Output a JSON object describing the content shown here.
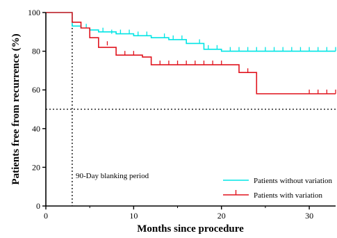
{
  "chart_data": {
    "type": "line",
    "xlabel": "Months since procedure",
    "ylabel": "Patients free from recurrence (%)",
    "xlim": [
      0,
      33
    ],
    "ylim": [
      0,
      100
    ],
    "x_ticks": [
      "0",
      "10",
      "20",
      "30"
    ],
    "y_ticks": [
      "0",
      "20",
      "40",
      "60",
      "80",
      "100"
    ],
    "grid": false,
    "legend_position": "bottom-right",
    "reference_lines": [
      {
        "orientation": "vertical",
        "x": 3,
        "style": "dotted",
        "label": "90-Day blanking period"
      },
      {
        "orientation": "horizontal",
        "y": 50,
        "style": "dotted"
      }
    ],
    "series": [
      {
        "name": "Patients without variation",
        "color": "#00e5e5",
        "steps": [
          [
            0,
            100
          ],
          [
            3,
            93
          ],
          [
            4,
            92
          ],
          [
            5,
            91
          ],
          [
            6,
            90
          ],
          [
            8,
            89
          ],
          [
            10,
            88
          ],
          [
            12,
            87
          ],
          [
            14,
            86
          ],
          [
            16,
            84
          ],
          [
            18,
            81
          ],
          [
            20,
            80
          ],
          [
            33,
            80
          ]
        ],
        "censored": [
          [
            4.6,
            92
          ],
          [
            6.5,
            90
          ],
          [
            7.5,
            89
          ],
          [
            8.5,
            89
          ],
          [
            9.5,
            89
          ],
          [
            10.5,
            88
          ],
          [
            11.5,
            88
          ],
          [
            13.5,
            87
          ],
          [
            14.5,
            86
          ],
          [
            15.5,
            86
          ],
          [
            17.5,
            84
          ],
          [
            18.5,
            81
          ],
          [
            19.5,
            81
          ],
          [
            21,
            80
          ],
          [
            22,
            80
          ],
          [
            23,
            80
          ],
          [
            24,
            80
          ],
          [
            25,
            80
          ],
          [
            26,
            80
          ],
          [
            27,
            80
          ],
          [
            28,
            80
          ],
          [
            29,
            80
          ],
          [
            30,
            80
          ],
          [
            31,
            80
          ],
          [
            32,
            80
          ],
          [
            33,
            80
          ]
        ]
      },
      {
        "name": "Patients with variation",
        "color": "#e0141e",
        "steps": [
          [
            0,
            100
          ],
          [
            3,
            95
          ],
          [
            4,
            92
          ],
          [
            5,
            87
          ],
          [
            6,
            82
          ],
          [
            8,
            78
          ],
          [
            11,
            77
          ],
          [
            12,
            73
          ],
          [
            22,
            69
          ],
          [
            24,
            58
          ],
          [
            33,
            58
          ]
        ],
        "censored": [
          [
            7,
            83
          ],
          [
            9,
            78
          ],
          [
            10,
            78
          ],
          [
            13,
            73
          ],
          [
            14,
            73
          ],
          [
            15,
            73
          ],
          [
            16,
            73
          ],
          [
            17,
            73
          ],
          [
            18,
            73
          ],
          [
            19,
            73
          ],
          [
            20,
            73
          ],
          [
            23,
            69
          ],
          [
            30,
            58
          ],
          [
            31,
            58
          ],
          [
            32,
            58
          ],
          [
            33,
            58
          ]
        ]
      }
    ]
  }
}
